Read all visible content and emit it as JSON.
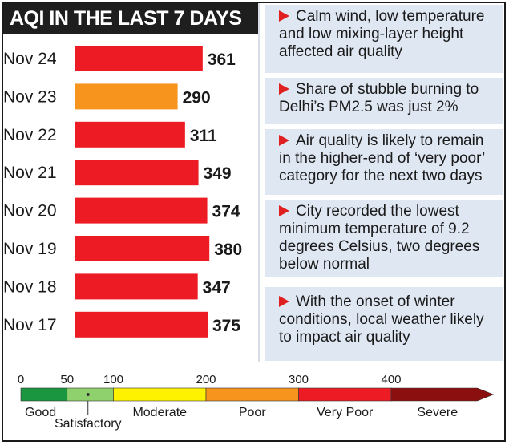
{
  "chart_data": {
    "type": "bar",
    "orientation": "horizontal",
    "title": "AQI IN THE LAST 7 DAYS",
    "categories": [
      "Nov 24",
      "Nov 23",
      "Nov 22",
      "Nov 21",
      "Nov 20",
      "Nov 19",
      "Nov 18",
      "Nov 17"
    ],
    "values": [
      361,
      290,
      311,
      349,
      374,
      380,
      347,
      375
    ],
    "bar_colors": [
      "#ed1c24",
      "#f7941d",
      "#ed1c24",
      "#ed1c24",
      "#ed1c24",
      "#ed1c24",
      "#ed1c24",
      "#ed1c24"
    ],
    "xlim": [
      0,
      400
    ],
    "grid": false,
    "legend": "none"
  },
  "notes": [
    "Calm wind, low temperature and low mixing-layer height affected air quality",
    "Share of stubble burning to Delhi’s PM2.5 was just 2%",
    "Air quality is likely to remain in the higher-end of ‘very poor’ category for the next two days",
    "City recorded the lowest minimum temperature of 9.2 degrees Celsius, two degrees below normal",
    "With the onset of winter conditions, local weather likely to impact air quality"
  ],
  "scale": {
    "ticks": [
      "0",
      "50",
      "100",
      "200",
      "300",
      "400"
    ],
    "tick_values": [
      0,
      50,
      100,
      200,
      300,
      400
    ],
    "bands": [
      {
        "label": "Good",
        "from": 0,
        "to": 50,
        "color": "#1a9641"
      },
      {
        "label": "Satisfactory",
        "from": 50,
        "to": 100,
        "color": "#8fd16c"
      },
      {
        "label": "Moderate",
        "from": 100,
        "to": 200,
        "color": "#fff200"
      },
      {
        "label": "Poor",
        "from": 200,
        "to": 300,
        "color": "#f7941d"
      },
      {
        "label": "Very Poor",
        "from": 300,
        "to": 400,
        "color": "#ed1c24"
      },
      {
        "label": "Severe",
        "from": 400,
        "to": 500,
        "color": "#8b0f0f"
      }
    ]
  },
  "colors": {
    "title_bg": "#1e1e1e",
    "note_bg": "#dfe7f3",
    "arrow": "#e02020"
  }
}
